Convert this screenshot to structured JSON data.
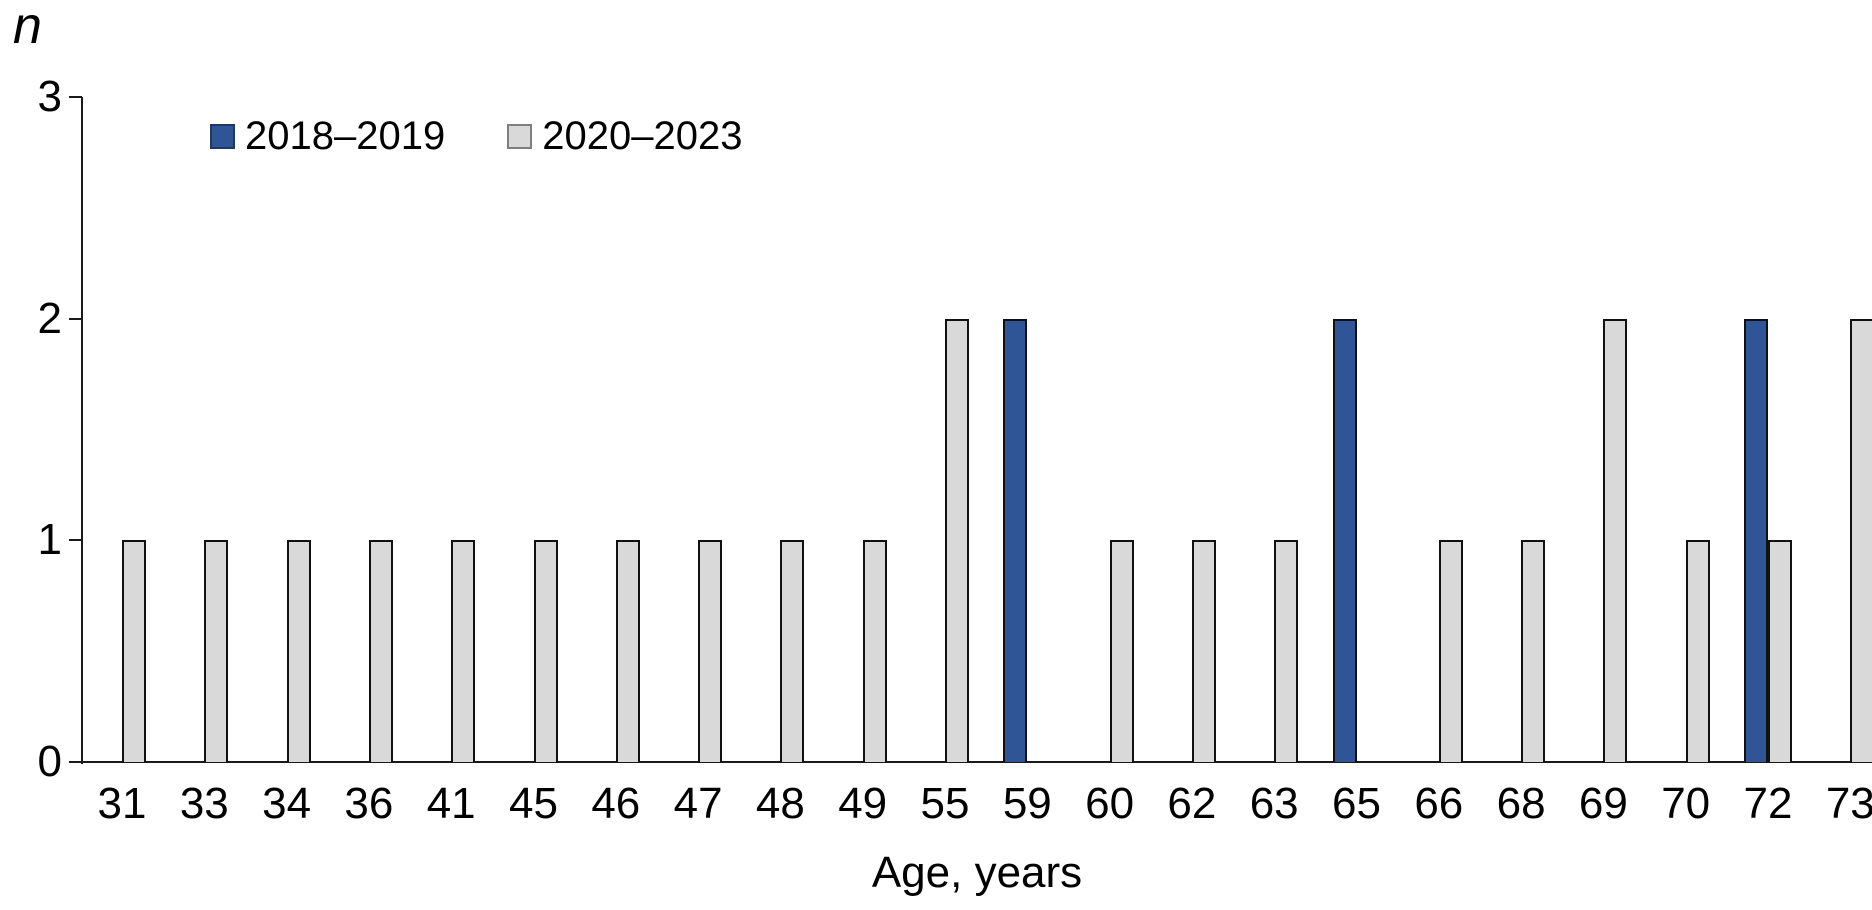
{
  "chart_data": {
    "type": "bar",
    "title": "",
    "ylabel": "n",
    "xlabel": "Age, years",
    "categories": [
      "31",
      "33",
      "34",
      "36",
      "41",
      "45",
      "46",
      "47",
      "48",
      "49",
      "55",
      "59",
      "60",
      "62",
      "63",
      "65",
      "66",
      "68",
      "69",
      "70",
      "72",
      "73"
    ],
    "series": [
      {
        "name": "2018–2019",
        "color": "#2F5597",
        "swatch_border": "#1F3864",
        "values": [
          0,
          0,
          0,
          0,
          0,
          0,
          0,
          0,
          0,
          0,
          0,
          2,
          0,
          0,
          0,
          2,
          0,
          0,
          0,
          0,
          2,
          0
        ]
      },
      {
        "name": "2020–2023",
        "color": "#D9D9D9",
        "swatch_border": "#7F7F7F",
        "values": [
          1,
          1,
          1,
          1,
          1,
          1,
          1,
          1,
          1,
          1,
          2,
          0,
          1,
          1,
          1,
          0,
          1,
          1,
          2,
          1,
          1,
          2
        ]
      }
    ],
    "ylim": [
      0,
      3
    ],
    "yticks": [
      3,
      2,
      1,
      0
    ],
    "grid": false,
    "legend_position": "top-left-inside",
    "bar_outline_color": "#111111",
    "axis_color": "#1a1a1a"
  }
}
